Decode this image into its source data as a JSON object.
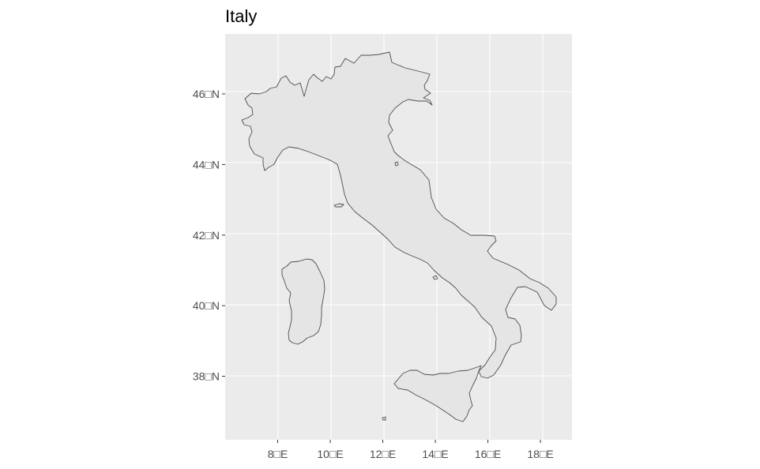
{
  "title": "Italy",
  "chart_data": {
    "type": "map",
    "title": "Italy",
    "region": "Italy",
    "xlabel": "",
    "ylabel": "",
    "x_ticks": [
      {
        "value": 8,
        "label": "8□E"
      },
      {
        "value": 10,
        "label": "10□E"
      },
      {
        "value": 12,
        "label": "12□E"
      },
      {
        "value": 14,
        "label": "14□E"
      },
      {
        "value": 16,
        "label": "16□E"
      },
      {
        "value": 18,
        "label": "18□E"
      }
    ],
    "y_ticks": [
      {
        "value": 38,
        "label": "38□N"
      },
      {
        "value": 40,
        "label": "40□N"
      },
      {
        "value": 42,
        "label": "42□N"
      },
      {
        "value": 44,
        "label": "44□N"
      },
      {
        "value": 46,
        "label": "46□N"
      }
    ],
    "xlim": [
      6.0,
      19.2
    ],
    "ylim": [
      36.2,
      47.7
    ],
    "grid": true,
    "colors": {
      "panel": "#ebebeb",
      "grid": "#ffffff",
      "land_fill": "#e5e5e5",
      "outline": "#4d4d4d",
      "tick_mark": "#333333"
    }
  }
}
